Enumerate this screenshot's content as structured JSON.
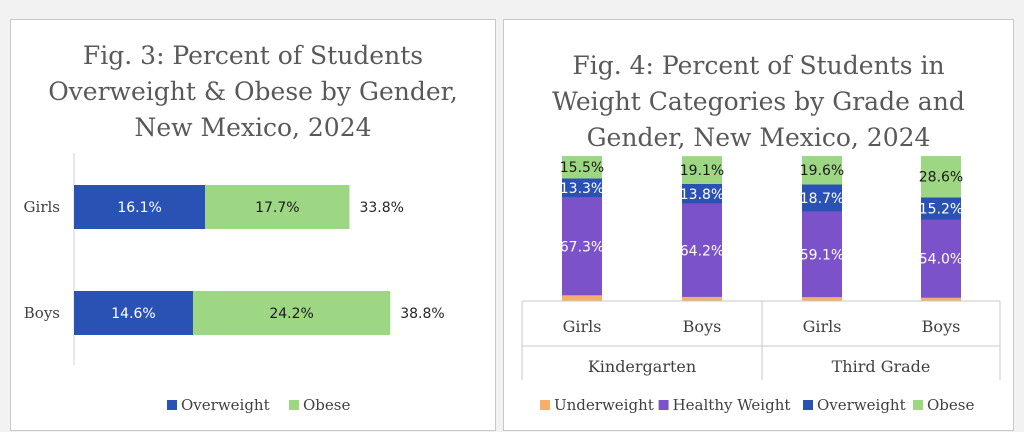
{
  "colors": {
    "underweight": "#f4b06a",
    "healthy": "#7b52c9",
    "overweight": "#2a52b4",
    "obese": "#9ed784"
  },
  "chart_data": [
    {
      "type": "bar",
      "orientation": "horizontal",
      "stacked": true,
      "title": "Fig. 3: Percent of Students\nOverweight & Obese by Gender,\nNew Mexico, 2024",
      "categories": [
        "Girls",
        "Boys"
      ],
      "series": [
        {
          "name": "Overweight",
          "values": [
            16.1,
            14.6
          ],
          "labels": [
            "16.1%",
            "14.6%"
          ]
        },
        {
          "name": "Obese",
          "values": [
            17.7,
            24.2
          ],
          "labels": [
            "17.7%",
            "24.2%"
          ]
        }
      ],
      "totals": [
        "33.8%",
        "38.8%"
      ],
      "legend_position": "bottom"
    },
    {
      "type": "bar",
      "orientation": "vertical",
      "stacked": true,
      "title": "Fig. 4: Percent of Students in\nWeight Categories by Grade and\nGender, New Mexico, 2024",
      "categories": [
        "Girls",
        "Boys",
        "Girls",
        "Boys"
      ],
      "groups": [
        "Kindergarten",
        "Third Grade"
      ],
      "series": [
        {
          "name": "Underweight",
          "values": [
            3.9,
            2.8,
            2.6,
            2.2
          ],
          "labels": [
            "3.9%",
            "2.8%",
            "2.6%",
            "2.2%"
          ]
        },
        {
          "name": "Healthy Weight",
          "values": [
            67.3,
            64.2,
            59.1,
            54.0
          ],
          "labels": [
            "67.3%",
            "64.2%",
            "59.1%",
            "54.0%"
          ]
        },
        {
          "name": "Overweight",
          "values": [
            13.3,
            13.8,
            18.7,
            15.2
          ],
          "labels": [
            "13.3%",
            "13.8%",
            "18.7%",
            "15.2%"
          ]
        },
        {
          "name": "Obese",
          "values": [
            15.5,
            19.1,
            19.6,
            28.6
          ],
          "labels": [
            "15.5%",
            "19.1%",
            "19.6%",
            "28.6%"
          ]
        }
      ],
      "legend_position": "bottom"
    }
  ]
}
